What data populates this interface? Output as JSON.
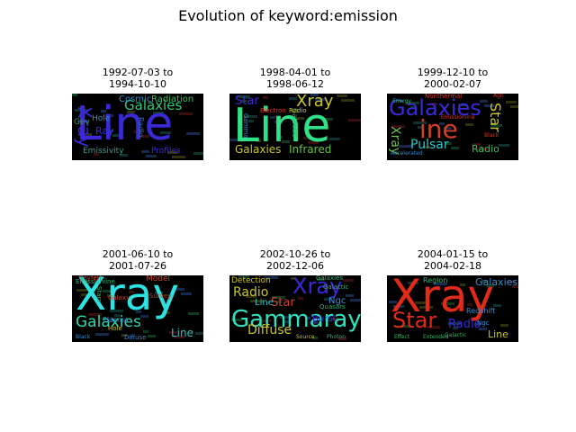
{
  "figure": {
    "title": "Evolution of keyword:emission"
  },
  "panels": [
    {
      "title": "1992-07-03 to\n1994-10-10",
      "words": [
        {
          "t": "Line",
          "c": "#3a2ad6",
          "s": 52
        },
        {
          "t": "Xray",
          "c": "#3a2ad6",
          "s": 20,
          "v": true
        },
        {
          "t": "Galaxies",
          "c": "#2fc77a",
          "s": 15
        },
        {
          "t": "Cosmic",
          "c": "#2f8fcf",
          "s": 10
        },
        {
          "t": "Radiation",
          "c": "#3ac060",
          "s": 10
        },
        {
          "t": "Ray",
          "c": "#3a2ad6",
          "s": 11
        },
        {
          "t": "Hole",
          "c": "#3a8ad0",
          "s": 9
        },
        {
          "t": "Gev",
          "c": "#3a9a50",
          "s": 9
        },
        {
          "t": "Radio",
          "c": "#2f6fc0",
          "s": 8,
          "v": true
        },
        {
          "t": "Emissivity",
          "c": "#3aa090",
          "s": 9
        },
        {
          "t": "Profiles",
          "c": "#3a2ad6",
          "s": 9
        }
      ]
    },
    {
      "title": "1998-04-01 to\n1998-06-12",
      "words": [
        {
          "t": "Line",
          "c": "#2fe28a",
          "s": 52
        },
        {
          "t": "Xray",
          "c": "#c9c42a",
          "s": 18
        },
        {
          "t": "Star",
          "c": "#3a2ad6",
          "s": 13
        },
        {
          "t": "Galaxies",
          "c": "#c9c42a",
          "s": 12
        },
        {
          "t": "Infrared",
          "c": "#6ac04a",
          "s": 12
        },
        {
          "t": "Galactic",
          "c": "#3ab070",
          "s": 8,
          "v": true
        },
        {
          "t": "Electron",
          "c": "#d03a2a",
          "s": 7
        },
        {
          "t": "Radio",
          "c": "#c9c42a",
          "s": 7
        },
        {
          "t": "Gamma",
          "c": "#3a8ad0",
          "s": 7,
          "v": true
        }
      ]
    },
    {
      "title": "1999-12-10 to\n2000-02-07",
      "words": [
        {
          "t": "Galaxies",
          "c": "#3a2ad6",
          "s": 24
        },
        {
          "t": "ine",
          "c": "#d0402a",
          "s": 28
        },
        {
          "t": "Star",
          "c": "#c9c42a",
          "s": 16,
          "v": true
        },
        {
          "t": "Pulsar",
          "c": "#2fc7c7",
          "s": 14
        },
        {
          "t": "Radio",
          "c": "#3ac060",
          "s": 11
        },
        {
          "t": "Xray",
          "c": "#6ac04a",
          "s": 14,
          "v": true
        },
        {
          "t": "Nonthermal",
          "c": "#d03a2a",
          "s": 7
        },
        {
          "t": "Agn",
          "c": "#d03a2a",
          "s": 6
        },
        {
          "t": "Energy",
          "c": "#3ab070",
          "s": 6
        },
        {
          "t": "Emissionline",
          "c": "#d03a2a",
          "s": 6
        },
        {
          "t": "Black",
          "c": "#d03a2a",
          "s": 6
        },
        {
          "t": "Accelerated",
          "c": "#3a8ad0",
          "s": 6
        }
      ]
    },
    {
      "title": "2001-06-10 to\n2001-07-26",
      "words": [
        {
          "t": "Xray",
          "c": "#2fe2e2",
          "s": 50
        },
        {
          "t": "Galaxies",
          "c": "#2fd6b0",
          "s": 17
        },
        {
          "t": "Line",
          "c": "#2fc7c7",
          "s": 12
        },
        {
          "t": "Model",
          "c": "#d0402a",
          "s": 9
        },
        {
          "t": "Seyfert",
          "c": "#d0402a",
          "s": 7
        },
        {
          "t": "Galaxy",
          "c": "#d0402a",
          "s": 7
        },
        {
          "t": "Plasma",
          "c": "#3a8ad0",
          "s": 8
        },
        {
          "t": "Survey",
          "c": "#d0402a",
          "s": 7
        },
        {
          "t": "Stars",
          "c": "#3ab070",
          "s": 7,
          "v": true
        },
        {
          "t": "Hole",
          "c": "#c9c42a",
          "s": 7
        },
        {
          "t": "Black",
          "c": "#3a8ad0",
          "s": 6
        },
        {
          "t": "Diffuse",
          "c": "#3a8ad0",
          "s": 7
        },
        {
          "t": "Emissionline",
          "c": "#3ab070",
          "s": 7
        }
      ]
    },
    {
      "title": "2002-10-26 to\n2002-12-06",
      "words": [
        {
          "t": "Gammaray",
          "c": "#2fe2c0",
          "s": 26
        },
        {
          "t": "Xray",
          "c": "#3a2ad6",
          "s": 24
        },
        {
          "t": "Radio",
          "c": "#c9c42a",
          "s": 14
        },
        {
          "t": "Star",
          "c": "#d0402a",
          "s": 13
        },
        {
          "t": "Diffuse",
          "c": "#c9c42a",
          "s": 14
        },
        {
          "t": "Detection",
          "c": "#c9c42a",
          "s": 9
        },
        {
          "t": "Line",
          "c": "#2fc7c7",
          "s": 10
        },
        {
          "t": "Ngc",
          "c": "#3a8ad0",
          "s": 10
        },
        {
          "t": "Galaxies",
          "c": "#3ab070",
          "s": 7
        },
        {
          "t": "Galactic",
          "c": "#3ab070",
          "s": 7
        },
        {
          "t": "Quasars",
          "c": "#3ab070",
          "s": 7
        },
        {
          "t": "Burst",
          "c": "#3a2ad6",
          "s": 10
        },
        {
          "t": "Source",
          "c": "#c9c42a",
          "s": 6
        },
        {
          "t": "Photon",
          "c": "#3ab070",
          "s": 6
        }
      ]
    },
    {
      "title": "2004-01-15 to\n2004-02-18",
      "words": [
        {
          "t": "Xray",
          "c": "#e02a1a",
          "s": 50
        },
        {
          "t": "Star",
          "c": "#e02a1a",
          "s": 24
        },
        {
          "t": "Radio",
          "c": "#3a2ad6",
          "s": 13
        },
        {
          "t": "Line",
          "c": "#c9c42a",
          "s": 11
        },
        {
          "t": "Galaxies",
          "c": "#3a8ad0",
          "s": 11
        },
        {
          "t": "Region",
          "c": "#3ab070",
          "s": 8
        },
        {
          "t": "Redshift",
          "c": "#3a8ad0",
          "s": 8
        },
        {
          "t": "Galactic",
          "c": "#3ab070",
          "s": 6
        },
        {
          "t": "Extended",
          "c": "#3ab070",
          "s": 6
        },
        {
          "t": "Effect",
          "c": "#3ab070",
          "s": 6
        },
        {
          "t": "Ngc",
          "c": "#3a8ad0",
          "s": 7
        }
      ]
    }
  ],
  "colors": {
    "cloud_bg": "#000000"
  }
}
